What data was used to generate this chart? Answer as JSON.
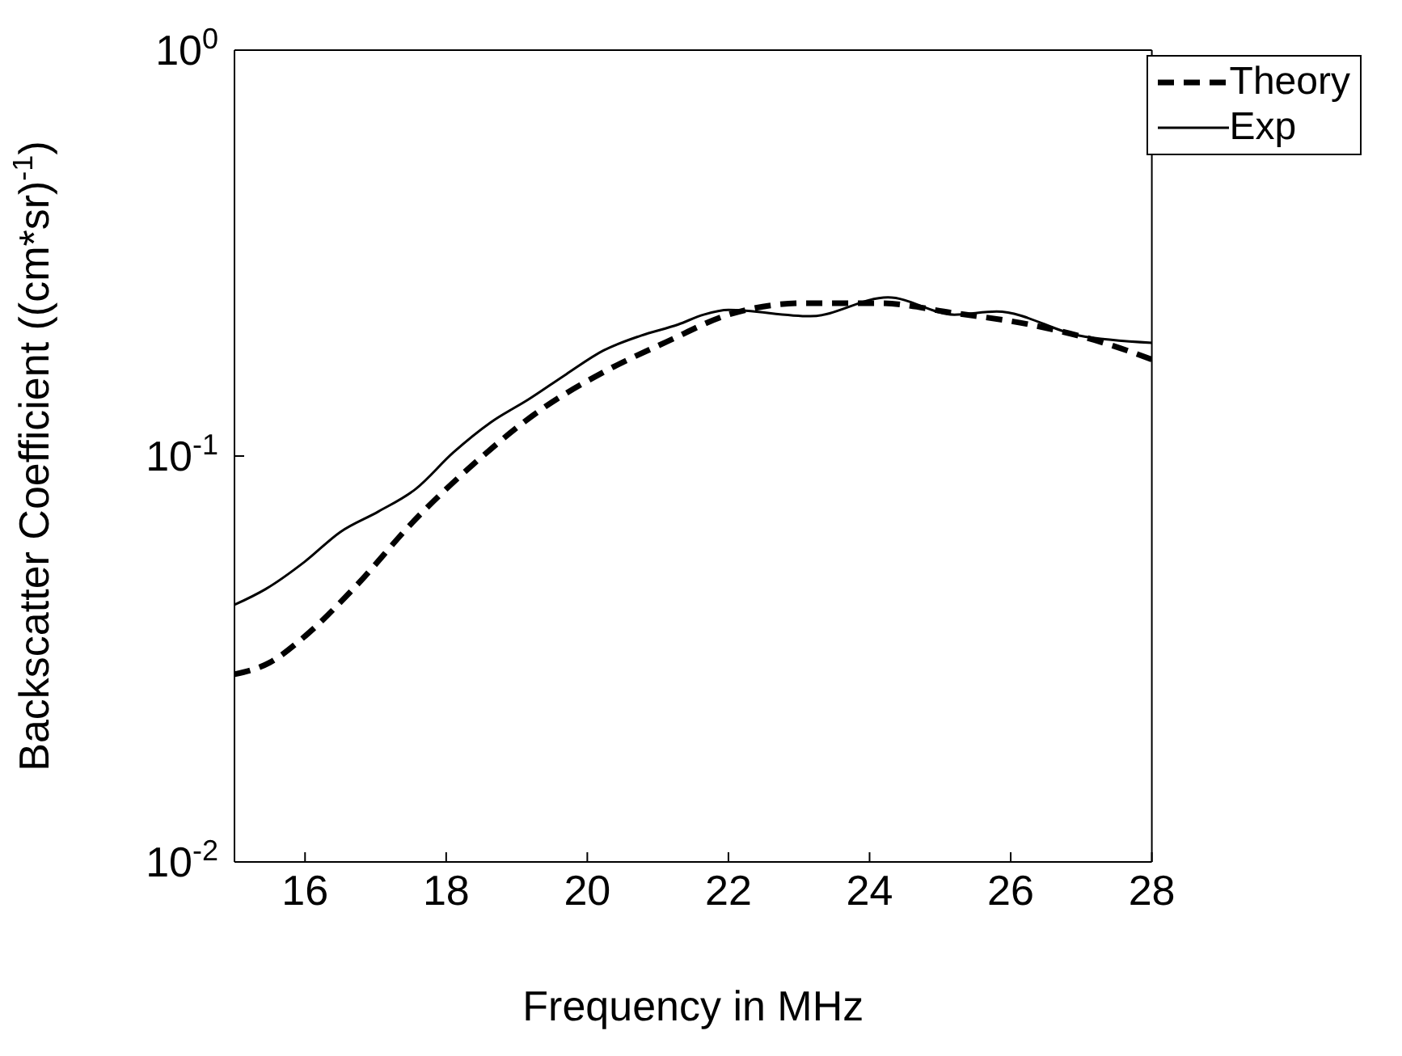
{
  "chart_data": {
    "type": "line",
    "xlabel": "Frequency in MHz",
    "ylabel": "Backscatter Coefficient ((cm*sr)$^{-1}$)",
    "log": "y",
    "xlim": [
      15,
      28
    ],
    "xticks": [
      16,
      18,
      20,
      22,
      24,
      26,
      28
    ],
    "ylim": [
      0.01,
      1
    ],
    "yticks": [
      {
        "value": 0.01,
        "label": "10$^{-2}$"
      },
      {
        "value": 0.1,
        "label": "10$^{-1}$"
      },
      {
        "value": 1,
        "label": "10$^{0}$"
      }
    ],
    "legend": "top right",
    "marker": "none",
    "series": [
      {
        "name": "Theory",
        "color": "#000000",
        "line_style": "dashed",
        "x": [
          15,
          15.5,
          16,
          16.68,
          17.57,
          18.46,
          19.34,
          20.23,
          21.12,
          22,
          23.07,
          24.13,
          25.2,
          26.26,
          27.32,
          28
        ],
        "values": [
          0.029,
          0.031,
          0.036,
          0.047,
          0.07,
          0.098,
          0.13,
          0.161,
          0.191,
          0.223,
          0.238,
          0.238,
          0.225,
          0.211,
          0.19,
          0.173
        ]
      },
      {
        "name": "Exp",
        "color": "#000000",
        "line_style": "solid",
        "x": [
          15,
          15.44,
          16,
          16.5,
          17.04,
          17.57,
          18.1,
          18.63,
          19.17,
          19.7,
          20.23,
          20.76,
          21.29,
          21.65,
          22,
          23.16,
          24.26,
          25.2,
          25.8,
          26.97,
          28
        ],
        "values": [
          0.043,
          0.047,
          0.055,
          0.065,
          0.073,
          0.083,
          0.102,
          0.121,
          0.138,
          0.159,
          0.182,
          0.198,
          0.211,
          0.223,
          0.229,
          0.221,
          0.246,
          0.223,
          0.227,
          0.198,
          0.19
        ]
      }
    ]
  }
}
